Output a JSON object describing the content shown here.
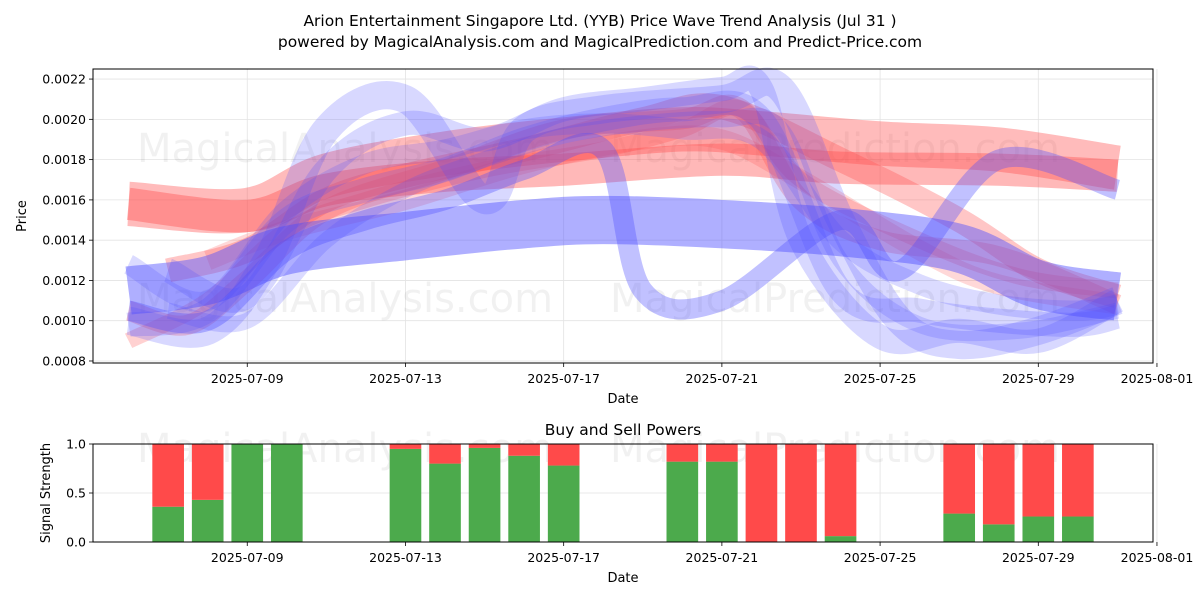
{
  "chart_data": [
    {
      "type": "area",
      "title": "Arion Entertainment Singapore Ltd. (YYB) Price Wave Trend Analysis (Jul 31 )",
      "subtitle": "powered by MagicalAnalysis.com and MagicalPrediction.com and Predict-Price.com",
      "xlabel": "Date",
      "ylabel": "Price",
      "xlim": [
        -0.9,
        25.9
      ],
      "ylim": [
        0.00079,
        0.00225
      ],
      "grid": true,
      "x_origin_date": "2025-07-06",
      "x_ticks": [
        {
          "x": 3,
          "label": "2025-07-09"
        },
        {
          "x": 7,
          "label": "2025-07-13"
        },
        {
          "x": 11,
          "label": "2025-07-17"
        },
        {
          "x": 15,
          "label": "2025-07-21"
        },
        {
          "x": 19,
          "label": "2025-07-25"
        },
        {
          "x": 23,
          "label": "2025-07-29"
        },
        {
          "x": 26,
          "label": "2025-08-01"
        }
      ],
      "y_ticks": [
        {
          "value": 0.0008,
          "label": "0.0008"
        },
        {
          "value": 0.001,
          "label": "0.0010"
        },
        {
          "value": 0.0012,
          "label": "0.0012"
        },
        {
          "value": 0.0014,
          "label": "0.0014"
        },
        {
          "value": 0.0016,
          "label": "0.0016"
        },
        {
          "value": 0.0018,
          "label": "0.0018"
        },
        {
          "value": 0.002,
          "label": "0.0020"
        },
        {
          "value": 0.0022,
          "label": "0.0022"
        }
      ],
      "series": [
        {
          "name": "red-wave-1",
          "color": "#ff4d4d",
          "opacity": 0.38,
          "width": 0.00022,
          "points": [
            [
              0,
              0.00158
            ],
            [
              3,
              0.00155
            ],
            [
              5,
              0.00172
            ],
            [
              8,
              0.00183
            ],
            [
              11,
              0.0019
            ],
            [
              14,
              0.00195
            ],
            [
              16,
              0.00193
            ],
            [
              19,
              0.00188
            ],
            [
              22,
              0.00185
            ],
            [
              25,
              0.00176
            ]
          ]
        },
        {
          "name": "red-wave-2",
          "color": "#ff4d4d",
          "opacity": 0.4,
          "width": 0.00016,
          "points": [
            [
              0,
              0.00158
            ],
            [
              3,
              0.00152
            ],
            [
              5,
              0.00165
            ],
            [
              8,
              0.00172
            ],
            [
              11,
              0.00175
            ],
            [
              15,
              0.0018
            ],
            [
              18,
              0.00176
            ],
            [
              22,
              0.00175
            ],
            [
              25,
              0.00172
            ]
          ]
        },
        {
          "name": "red-wave-3",
          "color": "#ff4d4d",
          "opacity": 0.32,
          "width": 0.00012,
          "points": [
            [
              1,
              0.00125
            ],
            [
              3,
              0.00135
            ],
            [
              5,
              0.0016
            ],
            [
              7,
              0.00172
            ],
            [
              10,
              0.00185
            ],
            [
              13,
              0.002
            ],
            [
              15,
              0.00206
            ],
            [
              18,
              0.0018
            ],
            [
              21,
              0.0015
            ],
            [
              23,
              0.00125
            ],
            [
              25,
              0.00112
            ]
          ]
        },
        {
          "name": "red-wave-4",
          "color": "#ff4d4d",
          "opacity": 0.28,
          "width": 0.0001,
          "points": [
            [
              0,
              0.00105
            ],
            [
              1.5,
              0.00098
            ],
            [
              3,
              0.0012
            ],
            [
              5,
              0.00155
            ],
            [
              8,
              0.00175
            ],
            [
              11,
              0.00195
            ],
            [
              14,
              0.002
            ],
            [
              15.5,
              0.00205
            ],
            [
              17,
              0.0016
            ],
            [
              19,
              0.0014
            ],
            [
              22,
              0.00132
            ],
            [
              25,
              0.00108
            ]
          ]
        },
        {
          "name": "red-wave-5",
          "color": "#ff4d4d",
          "opacity": 0.22,
          "width": 0.0001,
          "points": [
            [
              2,
              0.0013
            ],
            [
              4,
              0.00145
            ],
            [
              7,
              0.0016
            ],
            [
              10,
              0.00178
            ],
            [
              13,
              0.0019
            ],
            [
              15,
              0.0019
            ],
            [
              17,
              0.0017
            ],
            [
              20,
              0.00135
            ],
            [
              22,
              0.00118
            ],
            [
              25,
              0.00108
            ]
          ]
        },
        {
          "name": "red-wave-6",
          "color": "#ff4d4d",
          "opacity": 0.26,
          "width": 8e-05,
          "points": [
            [
              0,
              0.0009
            ],
            [
              2,
              0.0011
            ],
            [
              4,
              0.00145
            ],
            [
              6,
              0.0016
            ],
            [
              9,
              0.00175
            ],
            [
              12,
              0.00185
            ],
            [
              14,
              0.00195
            ],
            [
              15.5,
              0.00205
            ],
            [
              17,
              0.0017
            ],
            [
              20,
              0.0014
            ],
            [
              22.5,
              0.00122
            ],
            [
              25,
              0.00115
            ]
          ]
        },
        {
          "name": "blue-wave-1",
          "color": "#4d4dff",
          "opacity": 0.45,
          "width": 0.00024,
          "points": [
            [
              0,
              0.00115
            ],
            [
              2,
              0.0012
            ],
            [
              4,
              0.00135
            ],
            [
              7,
              0.00142
            ],
            [
              10,
              0.00148
            ],
            [
              12,
              0.0015
            ],
            [
              15,
              0.00148
            ],
            [
              18,
              0.00144
            ],
            [
              21,
              0.00136
            ],
            [
              23,
              0.00118
            ],
            [
              25,
              0.00112
            ]
          ]
        },
        {
          "name": "blue-wave-2",
          "color": "#4d4dff",
          "opacity": 0.35,
          "width": 0.0001,
          "points": [
            [
              0,
              0.00105
            ],
            [
              2,
              0.001
            ],
            [
              4,
              0.00135
            ],
            [
              6,
              0.0015
            ],
            [
              8,
              0.0016
            ],
            [
              10,
              0.00175
            ],
            [
              12,
              0.00185
            ],
            [
              13,
              0.00115
            ],
            [
              15,
              0.0011
            ],
            [
              18,
              0.0015
            ],
            [
              19.5,
              0.00125
            ],
            [
              22,
              0.0018
            ],
            [
              25,
              0.00165
            ]
          ]
        },
        {
          "name": "blue-wave-3",
          "color": "#4d4dff",
          "opacity": 0.22,
          "width": 0.00014,
          "points": [
            [
              0,
              0.001
            ],
            [
              2,
              0.00095
            ],
            [
              3.5,
              0.0013
            ],
            [
              5,
              0.00195
            ],
            [
              7,
              0.0021
            ],
            [
              9,
              0.0016
            ],
            [
              10,
              0.00195
            ],
            [
              12,
              0.00205
            ],
            [
              15,
              0.0021
            ],
            [
              16.5,
              0.00215
            ],
            [
              18,
              0.0015
            ],
            [
              19.5,
              0.001
            ],
            [
              21,
              0.00088
            ],
            [
              23,
              0.00095
            ],
            [
              25,
              0.0011
            ]
          ]
        },
        {
          "name": "blue-wave-4",
          "color": "#4d4dff",
          "opacity": 0.22,
          "width": 0.00012,
          "points": [
            [
              1,
              0.00125
            ],
            [
              3,
              0.00112
            ],
            [
              5,
              0.00175
            ],
            [
              7,
              0.00198
            ],
            [
              9,
              0.0019
            ],
            [
              11,
              0.00205
            ],
            [
              13,
              0.0021
            ],
            [
              15,
              0.00215
            ],
            [
              16,
              0.00215
            ],
            [
              17,
              0.0014
            ],
            [
              19,
              0.00092
            ],
            [
              21,
              0.00095
            ],
            [
              23,
              0.0009
            ],
            [
              25,
              0.0011
            ]
          ]
        },
        {
          "name": "blue-wave-5",
          "color": "#4d4dff",
          "opacity": 0.22,
          "width": 0.00012,
          "points": [
            [
              0,
              0.00098
            ],
            [
              2,
              0.00105
            ],
            [
              4,
              0.0015
            ],
            [
              6,
              0.00165
            ],
            [
              8,
              0.00175
            ],
            [
              10,
              0.0019
            ],
            [
              12,
              0.002
            ],
            [
              14,
              0.00205
            ],
            [
              16,
              0.002
            ],
            [
              18,
              0.00115
            ],
            [
              20,
              0.00105
            ],
            [
              22,
              0.001
            ],
            [
              24,
              0.00098
            ],
            [
              25,
              0.00102
            ]
          ]
        },
        {
          "name": "blue-wave-6",
          "color": "#4d4dff",
          "opacity": 0.2,
          "width": 0.0001,
          "points": [
            [
              0,
              0.00128
            ],
            [
              2,
              0.0011
            ],
            [
              4,
              0.00155
            ],
            [
              6,
              0.00178
            ],
            [
              8,
              0.00185
            ],
            [
              10,
              0.00195
            ],
            [
              12,
              0.00198
            ],
            [
              14,
              0.00195
            ],
            [
              16,
              0.0019
            ],
            [
              18,
              0.0014
            ],
            [
              20,
              0.00118
            ],
            [
              22,
              0.00108
            ],
            [
              24,
              0.00105
            ],
            [
              25,
              0.00108
            ]
          ]
        },
        {
          "name": "blue-wave-7",
          "color": "#4d4dff",
          "opacity": 0.2,
          "width": 8e-05,
          "points": [
            [
              1,
              0.00105
            ],
            [
              3,
              0.001
            ],
            [
              5,
              0.0014
            ],
            [
              7,
              0.00165
            ],
            [
              9,
              0.0018
            ],
            [
              11,
              0.00192
            ],
            [
              13,
              0.00198
            ],
            [
              15,
              0.002
            ],
            [
              16.5,
              0.00195
            ],
            [
              18,
              0.0013
            ],
            [
              20,
              0.00098
            ],
            [
              22.5,
              0.00095
            ],
            [
              25,
              0.00105
            ]
          ]
        }
      ]
    },
    {
      "type": "bar",
      "title": "Buy and Sell Powers",
      "xlabel": "Date",
      "ylabel": "Signal Strength",
      "xlim": [
        -0.9,
        25.9
      ],
      "ylim": [
        0,
        1.0
      ],
      "grid": true,
      "x_ticks": [
        {
          "x": 3,
          "label": "2025-07-09"
        },
        {
          "x": 7,
          "label": "2025-07-13"
        },
        {
          "x": 11,
          "label": "2025-07-17"
        },
        {
          "x": 15,
          "label": "2025-07-21"
        },
        {
          "x": 19,
          "label": "2025-07-25"
        },
        {
          "x": 23,
          "label": "2025-07-29"
        },
        {
          "x": 26,
          "label": "2025-08-01"
        }
      ],
      "y_ticks": [
        {
          "value": 0.0,
          "label": "0.0"
        },
        {
          "value": 0.5,
          "label": "0.5"
        },
        {
          "value": 1.0,
          "label": "1.0"
        }
      ],
      "buy_color": "#4caa4c",
      "sell_color": "#ff4a4a",
      "bars": [
        {
          "x": 1,
          "buy": 0.36,
          "sell": 0.64
        },
        {
          "x": 2,
          "buy": 0.43,
          "sell": 0.57
        },
        {
          "x": 3,
          "buy": 1.0,
          "sell": 0.0
        },
        {
          "x": 4,
          "buy": 1.0,
          "sell": 0.0
        },
        {
          "x": 7,
          "buy": 0.95,
          "sell": 0.05
        },
        {
          "x": 8,
          "buy": 0.8,
          "sell": 0.2
        },
        {
          "x": 9,
          "buy": 0.96,
          "sell": 0.04
        },
        {
          "x": 10,
          "buy": 0.88,
          "sell": 0.12
        },
        {
          "x": 11,
          "buy": 0.78,
          "sell": 0.22
        },
        {
          "x": 14,
          "buy": 0.82,
          "sell": 0.18
        },
        {
          "x": 15,
          "buy": 0.82,
          "sell": 0.18
        },
        {
          "x": 16,
          "buy": 0.0,
          "sell": 1.0
        },
        {
          "x": 17,
          "buy": 0.0,
          "sell": 1.0
        },
        {
          "x": 18,
          "buy": 0.06,
          "sell": 0.94
        },
        {
          "x": 21,
          "buy": 0.29,
          "sell": 0.71
        },
        {
          "x": 22,
          "buy": 0.18,
          "sell": 0.82
        },
        {
          "x": 23,
          "buy": 0.26,
          "sell": 0.74
        },
        {
          "x": 24,
          "buy": 0.26,
          "sell": 0.74
        }
      ]
    }
  ],
  "watermarks": [
    "MagicalAnalysis.com",
    "MagicalPrediction.com"
  ]
}
